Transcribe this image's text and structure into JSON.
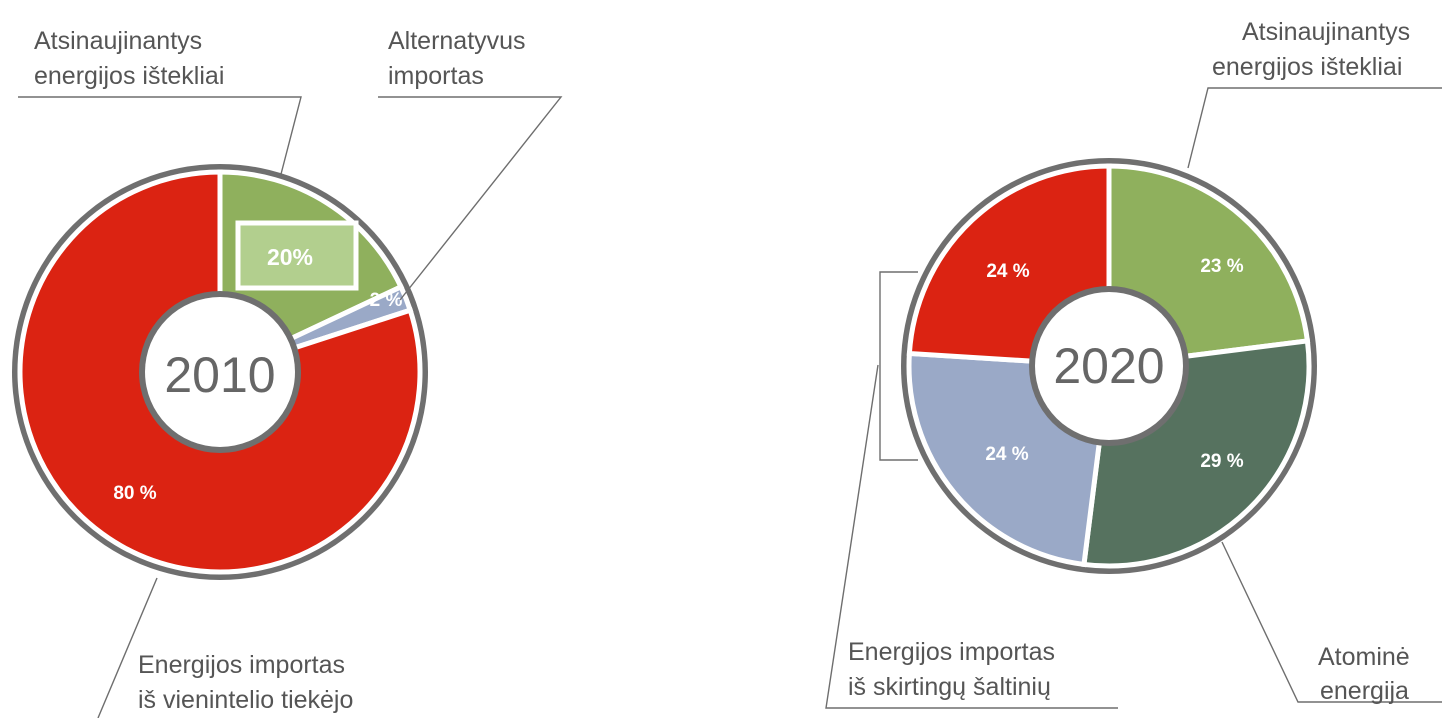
{
  "chart_data": [
    {
      "type": "pie",
      "title": "2010",
      "slices": [
        {
          "label": "Atsinaujinantys energijos ištekliai",
          "value": 18,
          "value_label": "",
          "color": "#8fb05d"
        },
        {
          "label": "Alternatyvus importas",
          "value": 2,
          "value_label": "2 %",
          "color": "#9aa9c7"
        },
        {
          "label": "Energijos importas iš vienintelio tiekėjo",
          "value": 80,
          "value_label": "80 %",
          "color": "#db2312"
        }
      ],
      "annotation": "20%",
      "annotation_color": "#b2cf8e",
      "labels": {
        "renewables": [
          "Atsinaujinantys",
          "energijos ištekliai"
        ],
        "alt_import": [
          "Alternatyvus",
          "importas"
        ],
        "single_supplier": [
          "Energijos importas",
          "iš vienintelio tiekėjo"
        ]
      }
    },
    {
      "type": "pie",
      "title": "2020",
      "slices": [
        {
          "label": "Atsinaujinantys energijos ištekliai",
          "value": 23,
          "value_label": "23 %",
          "color": "#8fb05d"
        },
        {
          "label": "Atominė energija",
          "value": 29,
          "value_label": "29 %",
          "color": "#56725f"
        },
        {
          "label": "Energijos importas iš skirtingų šaltinių",
          "value": 24,
          "value_label": "24 %",
          "color": "#9aa9c7"
        },
        {
          "label": "Energijos importas iš skirtingų šaltinių",
          "value": 24,
          "value_label": "24 %",
          "color": "#db2312"
        }
      ],
      "labels": {
        "renewables": [
          "Atsinaujinantys",
          "energijos ištekliai"
        ],
        "nuclear": [
          "Atominė",
          "energija"
        ],
        "multi_import": [
          "Energijos importas",
          "iš skirtingų šaltinių"
        ]
      }
    }
  ],
  "colors": {
    "ring": "#6f6f6f",
    "hub": "#ffffff",
    "leader": "#6e6e6e"
  }
}
